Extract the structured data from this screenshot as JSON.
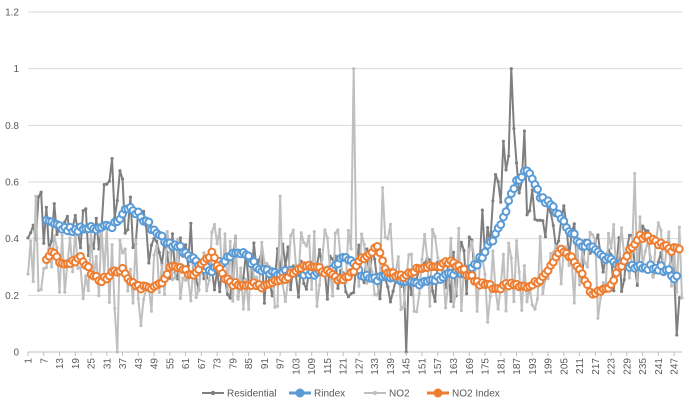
{
  "chart_data": {
    "type": "line",
    "title": "",
    "xlabel": "",
    "ylabel": "",
    "ylim": [
      0,
      1.2
    ],
    "y_ticks": [
      "0",
      "0.2",
      "0.4",
      "0.6",
      "0.8",
      "1",
      "1.2"
    ],
    "x_tick_labels": [
      "1",
      "7",
      "13",
      "19",
      "25",
      "31",
      "37",
      "43",
      "49",
      "55",
      "61",
      "67",
      "73",
      "79",
      "85",
      "91",
      "97",
      "103",
      "109",
      "115",
      "121",
      "127",
      "133",
      "139",
      "145",
      "151",
      "157",
      "163",
      "169",
      "175",
      "181",
      "187",
      "193",
      "199",
      "205",
      "211",
      "217",
      "223",
      "229",
      "235",
      "241",
      "247"
    ],
    "x_range": [
      1,
      250
    ],
    "grid": "horizontal",
    "legend_position": "bottom",
    "series": [
      {
        "name": "Residential",
        "color": "#7f7f7f",
        "marker": "small-circle",
        "line_width": 2,
        "knots": [
          [
            1,
            0.46
          ],
          [
            5,
            0.5
          ],
          [
            9,
            0.45
          ],
          [
            13,
            0.47
          ],
          [
            17,
            0.44
          ],
          [
            21,
            0.45
          ],
          [
            25,
            0.44
          ],
          [
            29,
            0.47
          ],
          [
            33,
            0.58
          ],
          [
            37,
            0.55
          ],
          [
            41,
            0.44
          ],
          [
            45,
            0.4
          ],
          [
            49,
            0.38
          ],
          [
            53,
            0.36
          ],
          [
            57,
            0.36
          ],
          [
            61,
            0.36
          ],
          [
            65,
            0.33
          ],
          [
            69,
            0.3
          ],
          [
            73,
            0.28
          ],
          [
            77,
            0.28
          ],
          [
            81,
            0.3
          ],
          [
            85,
            0.28
          ],
          [
            89,
            0.28
          ],
          [
            93,
            0.27
          ],
          [
            97,
            0.28
          ],
          [
            101,
            0.28
          ],
          [
            105,
            0.28
          ],
          [
            109,
            0.28
          ],
          [
            113,
            0.27
          ],
          [
            117,
            0.28
          ],
          [
            121,
            0.31
          ],
          [
            125,
            0.3
          ],
          [
            129,
            0.27
          ],
          [
            133,
            0.27
          ],
          [
            137,
            0.26
          ],
          [
            141,
            0.25
          ],
          [
            145,
            0.25
          ],
          [
            149,
            0.26
          ],
          [
            153,
            0.27
          ],
          [
            157,
            0.27
          ],
          [
            161,
            0.27
          ],
          [
            165,
            0.28
          ],
          [
            169,
            0.3
          ],
          [
            173,
            0.37
          ],
          [
            177,
            0.46
          ],
          [
            181,
            0.62
          ],
          [
            184,
            0.8
          ],
          [
            186,
            0.68
          ],
          [
            189,
            0.62
          ],
          [
            193,
            0.56
          ],
          [
            197,
            0.5
          ],
          [
            201,
            0.45
          ],
          [
            205,
            0.41
          ],
          [
            209,
            0.38
          ],
          [
            213,
            0.36
          ],
          [
            217,
            0.33
          ],
          [
            221,
            0.3
          ],
          [
            225,
            0.3
          ],
          [
            229,
            0.32
          ],
          [
            233,
            0.34
          ],
          [
            237,
            0.33
          ],
          [
            241,
            0.32
          ],
          [
            245,
            0.3
          ],
          [
            249,
            0.24
          ]
        ],
        "amplitude": 0.11,
        "spikes": [
          [
            36,
            0.64
          ],
          [
            185,
            1.0
          ],
          [
            190,
            0.78
          ],
          [
            145,
            0.0
          ],
          [
            248,
            0.06
          ]
        ]
      },
      {
        "name": "Rindex",
        "color": "#5b9bd5",
        "marker": "large-circle",
        "line_width": 3,
        "knots": [
          [
            8,
            0.47
          ],
          [
            13,
            0.44
          ],
          [
            18,
            0.43
          ],
          [
            23,
            0.44
          ],
          [
            28,
            0.44
          ],
          [
            33,
            0.44
          ],
          [
            37,
            0.49
          ],
          [
            40,
            0.51
          ],
          [
            44,
            0.48
          ],
          [
            48,
            0.44
          ],
          [
            52,
            0.4
          ],
          [
            56,
            0.38
          ],
          [
            60,
            0.36
          ],
          [
            64,
            0.33
          ],
          [
            68,
            0.3
          ],
          [
            72,
            0.29
          ],
          [
            76,
            0.33
          ],
          [
            80,
            0.35
          ],
          [
            84,
            0.34
          ],
          [
            88,
            0.3
          ],
          [
            92,
            0.28
          ],
          [
            96,
            0.28
          ],
          [
            100,
            0.28
          ],
          [
            104,
            0.28
          ],
          [
            108,
            0.28
          ],
          [
            112,
            0.28
          ],
          [
            116,
            0.29
          ],
          [
            120,
            0.33
          ],
          [
            124,
            0.32
          ],
          [
            128,
            0.27
          ],
          [
            132,
            0.26
          ],
          [
            136,
            0.26
          ],
          [
            140,
            0.26
          ],
          [
            144,
            0.25
          ],
          [
            148,
            0.24
          ],
          [
            152,
            0.25
          ],
          [
            156,
            0.26
          ],
          [
            160,
            0.27
          ],
          [
            164,
            0.28
          ],
          [
            168,
            0.29
          ],
          [
            172,
            0.31
          ],
          [
            176,
            0.37
          ],
          [
            180,
            0.43
          ],
          [
            184,
            0.53
          ],
          [
            187,
            0.6
          ],
          [
            190,
            0.64
          ],
          [
            192,
            0.62
          ],
          [
            196,
            0.55
          ],
          [
            200,
            0.52
          ],
          [
            204,
            0.47
          ],
          [
            208,
            0.42
          ],
          [
            212,
            0.38
          ],
          [
            216,
            0.38
          ],
          [
            220,
            0.34
          ],
          [
            224,
            0.32
          ],
          [
            228,
            0.31
          ],
          [
            232,
            0.3
          ],
          [
            236,
            0.3
          ],
          [
            240,
            0.3
          ],
          [
            244,
            0.29
          ],
          [
            248,
            0.26
          ]
        ],
        "amplitude": 0.01
      },
      {
        "name": "NO2",
        "color": "#bfbfbf",
        "marker": "small-circle",
        "line_width": 2,
        "knots": [
          [
            1,
            0.35
          ],
          [
            8,
            0.36
          ],
          [
            15,
            0.33
          ],
          [
            22,
            0.31
          ],
          [
            29,
            0.3
          ],
          [
            36,
            0.3
          ],
          [
            43,
            0.24
          ],
          [
            50,
            0.26
          ],
          [
            57,
            0.3
          ],
          [
            64,
            0.3
          ],
          [
            71,
            0.32
          ],
          [
            78,
            0.28
          ],
          [
            85,
            0.28
          ],
          [
            92,
            0.28
          ],
          [
            99,
            0.3
          ],
          [
            106,
            0.3
          ],
          [
            113,
            0.3
          ],
          [
            120,
            0.28
          ],
          [
            127,
            0.33
          ],
          [
            134,
            0.33
          ],
          [
            141,
            0.3
          ],
          [
            148,
            0.28
          ],
          [
            155,
            0.3
          ],
          [
            162,
            0.3
          ],
          [
            169,
            0.27
          ],
          [
            176,
            0.25
          ],
          [
            183,
            0.25
          ],
          [
            190,
            0.26
          ],
          [
            197,
            0.28
          ],
          [
            204,
            0.32
          ],
          [
            211,
            0.3
          ],
          [
            218,
            0.26
          ],
          [
            225,
            0.32
          ],
          [
            232,
            0.38
          ],
          [
            239,
            0.36
          ],
          [
            246,
            0.34
          ],
          [
            250,
            0.32
          ]
        ],
        "amplitude": 0.15,
        "spikes": [
          [
            125,
            1.0
          ],
          [
            35,
            0.0
          ],
          [
            136,
            0.58
          ],
          [
            232,
            0.63
          ],
          [
            97,
            0.55
          ],
          [
            4,
            0.55
          ]
        ]
      },
      {
        "name": "NO2 Index",
        "color": "#ed7d31",
        "marker": "large-circle",
        "line_width": 3,
        "knots": [
          [
            8,
            0.33
          ],
          [
            10,
            0.36
          ],
          [
            13,
            0.32
          ],
          [
            17,
            0.31
          ],
          [
            21,
            0.34
          ],
          [
            25,
            0.28
          ],
          [
            29,
            0.25
          ],
          [
            33,
            0.28
          ],
          [
            37,
            0.29
          ],
          [
            40,
            0.25
          ],
          [
            44,
            0.23
          ],
          [
            48,
            0.23
          ],
          [
            52,
            0.25
          ],
          [
            56,
            0.31
          ],
          [
            60,
            0.29
          ],
          [
            64,
            0.27
          ],
          [
            68,
            0.32
          ],
          [
            71,
            0.35
          ],
          [
            75,
            0.27
          ],
          [
            79,
            0.24
          ],
          [
            83,
            0.23
          ],
          [
            87,
            0.24
          ],
          [
            91,
            0.23
          ],
          [
            95,
            0.25
          ],
          [
            99,
            0.26
          ],
          [
            103,
            0.29
          ],
          [
            107,
            0.31
          ],
          [
            111,
            0.3
          ],
          [
            115,
            0.28
          ],
          [
            119,
            0.26
          ],
          [
            123,
            0.26
          ],
          [
            127,
            0.32
          ],
          [
            131,
            0.35
          ],
          [
            134,
            0.37
          ],
          [
            137,
            0.29
          ],
          [
            141,
            0.27
          ],
          [
            145,
            0.27
          ],
          [
            149,
            0.29
          ],
          [
            153,
            0.3
          ],
          [
            157,
            0.3
          ],
          [
            161,
            0.32
          ],
          [
            165,
            0.3
          ],
          [
            169,
            0.27
          ],
          [
            173,
            0.24
          ],
          [
            177,
            0.23
          ],
          [
            181,
            0.23
          ],
          [
            185,
            0.24
          ],
          [
            189,
            0.23
          ],
          [
            193,
            0.24
          ],
          [
            197,
            0.26
          ],
          [
            201,
            0.31
          ],
          [
            204,
            0.37
          ],
          [
            208,
            0.33
          ],
          [
            212,
            0.27
          ],
          [
            215,
            0.21
          ],
          [
            219,
            0.21
          ],
          [
            223,
            0.24
          ],
          [
            227,
            0.31
          ],
          [
            231,
            0.37
          ],
          [
            234,
            0.41
          ],
          [
            238,
            0.4
          ],
          [
            242,
            0.38
          ],
          [
            246,
            0.36
          ],
          [
            249,
            0.37
          ]
        ],
        "amplitude": 0.008
      }
    ]
  }
}
